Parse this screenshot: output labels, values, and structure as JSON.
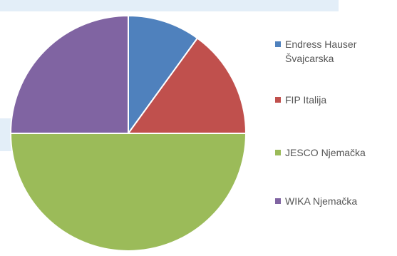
{
  "chart_data": {
    "type": "pie",
    "categories": [
      "Endress Hauser Švajcarska",
      "FIP Italija",
      "JESCO Njemačka",
      "WIKA Njemačka"
    ],
    "values": [
      10,
      15,
      50,
      25
    ],
    "colors": [
      "#4f81bd",
      "#c0504d",
      "#9bbb59",
      "#8064a2"
    ],
    "legend_position": "right",
    "start_angle": "12 o'clock",
    "direction": "clockwise"
  }
}
